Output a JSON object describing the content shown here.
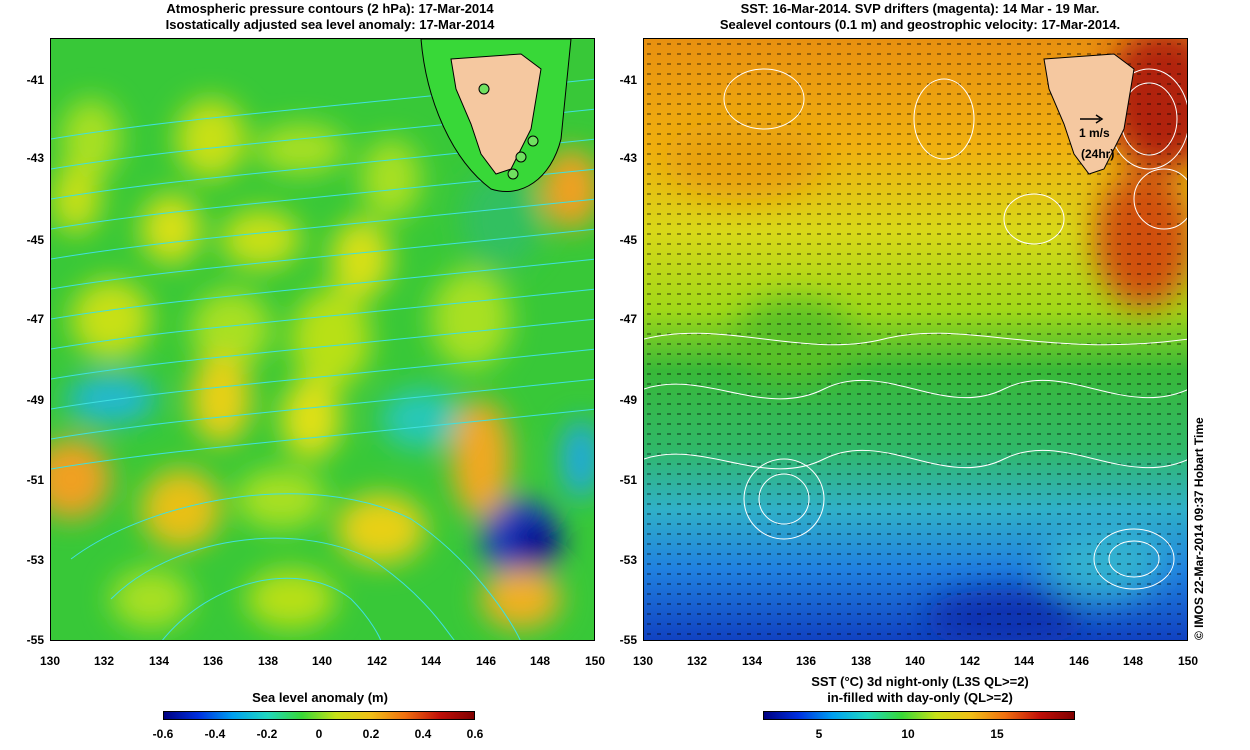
{
  "left": {
    "title_line1": "Atmospheric pressure contours (2 hPa): 17-Mar-2014",
    "title_line2": "Isostatically adjusted sea level anomaly: 17-Mar-2014",
    "colorbar_label": "Sea level anomaly (m)",
    "colorbar_ticks": [
      "-0.6",
      "-0.4",
      "-0.2",
      "0",
      "0.2",
      "0.4",
      "0.6"
    ],
    "colorbar_range": [
      -0.6,
      0.6
    ]
  },
  "right": {
    "title_line1": "SST: 16-Mar-2014. SVP drifters (magenta): 14 Mar - 19 Mar.",
    "title_line2": "Sealevel contours (0.1 m) and geostrophic velocity: 17-Mar-2014.",
    "colorbar_label_line1": "SST (°C) 3d night-only (L3S QL>=2)",
    "colorbar_label_line2": "in-filled with day-only (QL>=2)",
    "colorbar_ticks": [
      "5",
      "10",
      "15"
    ],
    "colorbar_range": [
      2.5,
      20
    ],
    "scale_arrow_label": "1 m/s",
    "scale_arrow_sublabel": "(24hr)",
    "credit": "© IMOS 22-Mar-2014 09:37 Hobart Time"
  },
  "map_data": {
    "lat_range": [
      -55,
      -40
    ],
    "lon_range": [
      130,
      150
    ],
    "lat_ticks": [
      "-41",
      "-43",
      "-45",
      "-47",
      "-49",
      "-51",
      "-53",
      "-55"
    ],
    "lon_ticks": [
      "130",
      "132",
      "134",
      "136",
      "138",
      "140",
      "142",
      "144",
      "146",
      "148",
      "150"
    ],
    "land": "Tasmania",
    "land_color": "#f5c8a0"
  },
  "colors": {
    "contour_left": "#40e0e0",
    "contour_right": "#ffffff",
    "velocity_arrows": "#000000"
  }
}
